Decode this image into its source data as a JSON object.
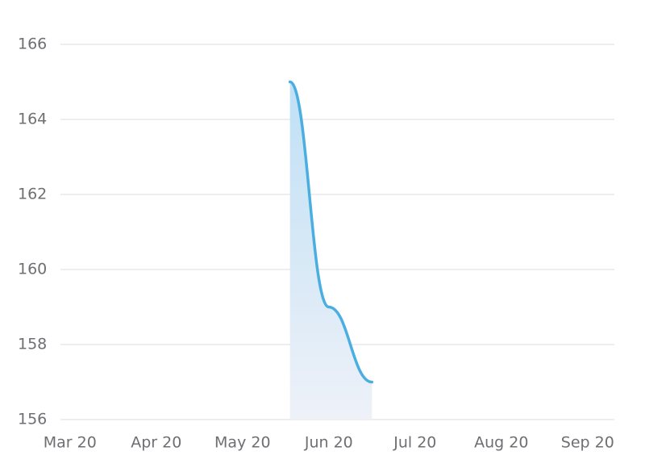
{
  "chart_data": {
    "type": "line",
    "x": [
      5.55,
      6.0,
      6.5
    ],
    "series": [
      {
        "color": "#4aaee0",
        "values": [
          165,
          159,
          157
        ]
      }
    ],
    "xlim": [
      2.89,
      9.31
    ],
    "xticks": [
      {
        "value": 3,
        "label": "Mar 20"
      },
      {
        "value": 4,
        "label": "Apr 20"
      },
      {
        "value": 5,
        "label": "May 20"
      },
      {
        "value": 6,
        "label": "Jun 20"
      },
      {
        "value": 7,
        "label": "Jul 20"
      },
      {
        "value": 8,
        "label": "Aug 20"
      },
      {
        "value": 9,
        "label": "Sep 20"
      }
    ],
    "ylim": [
      156,
      166
    ],
    "yticks": [
      156,
      158,
      160,
      162,
      164,
      166
    ],
    "grid": true,
    "area": true
  }
}
